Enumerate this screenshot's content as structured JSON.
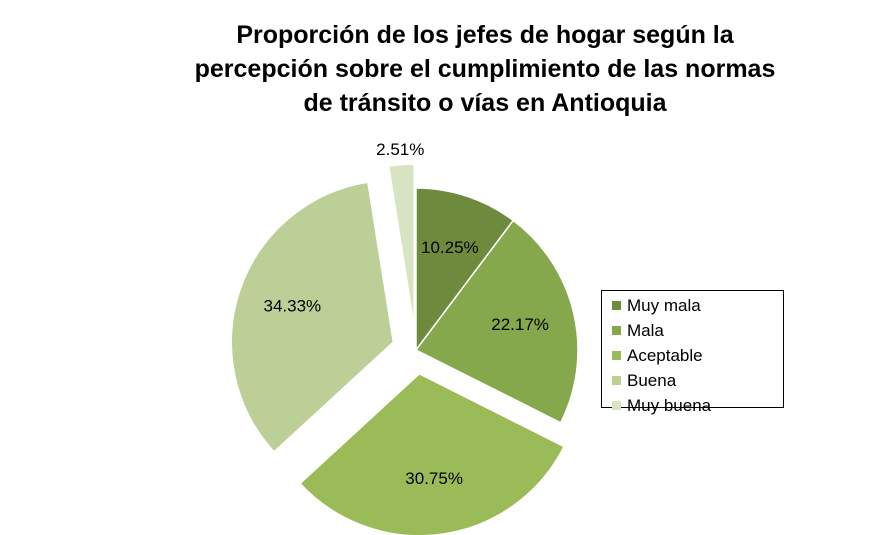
{
  "chart_data": {
    "type": "pie",
    "title_lines": [
      "Proporción de los jefes de  hogar según la",
      "percepción sobre el cumplimiento de las normas",
      "de tránsito o vías en Antioquia"
    ],
    "categories": [
      "Muy mala",
      "Mala",
      "Aceptable",
      "Buena",
      "Muy buena"
    ],
    "values": [
      10.25,
      22.17,
      30.75,
      34.33,
      2.51
    ],
    "value_labels": [
      "10.25%",
      "22.17%",
      "30.75%",
      "34.33%",
      "2.51%"
    ],
    "colors": [
      "#6e8b3d",
      "#86a84c",
      "#9bbb59",
      "#bccf97",
      "#d7e3c1"
    ],
    "exploded": [
      false,
      false,
      true,
      true,
      true
    ],
    "legend_position": "right",
    "xlabel": "",
    "ylabel": ""
  }
}
